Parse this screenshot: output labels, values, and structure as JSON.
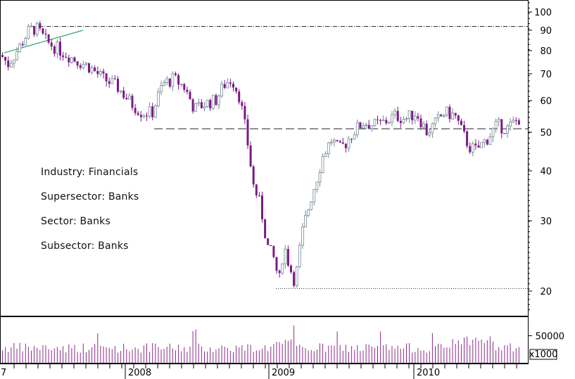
{
  "info": {
    "industry": "Industry: Financials",
    "supersector": "Supersector: Banks",
    "sector": "Sector: Banks",
    "subsector": "Subsector: Banks"
  },
  "colors": {
    "up": "#778a96",
    "down": "#7a1a86",
    "trend": "#2fa86a",
    "volume": "#8a2a8a",
    "grid": "#000000"
  },
  "chart_data": {
    "type": "candlestick",
    "price_axis": {
      "scale": "log",
      "ticks": [
        100,
        90,
        80,
        70,
        60,
        50,
        40,
        30,
        20
      ],
      "range": [
        18.5,
        108
      ]
    },
    "volume_axis": {
      "ticks": [
        50000
      ],
      "unit_label": "x1000",
      "range": [
        0,
        90000
      ]
    },
    "x_ticks": [
      "7",
      "2008",
      "2009",
      "2010"
    ],
    "reference_lines": [
      {
        "style": "dash-dot",
        "value": 92,
        "from": "2007-07",
        "to": "end"
      },
      {
        "style": "dashed",
        "value": 51,
        "from": "2008-02",
        "to": "end"
      },
      {
        "style": "dotted",
        "value": 20.3,
        "from": "2008-12",
        "to": "end"
      }
    ],
    "trend_line": {
      "from": [
        "2007-01",
        79
      ],
      "to": [
        "2007-09",
        90
      ]
    },
    "anchors": [
      [
        0,
        78
      ],
      [
        10,
        74
      ],
      [
        25,
        81
      ],
      [
        40,
        90
      ],
      [
        50,
        91
      ],
      [
        65,
        84
      ],
      [
        85,
        80
      ],
      [
        105,
        76
      ],
      [
        125,
        73
      ],
      [
        145,
        68
      ],
      [
        165,
        65
      ],
      [
        185,
        59
      ],
      [
        200,
        56
      ],
      [
        215,
        56
      ],
      [
        230,
        66
      ],
      [
        245,
        68
      ],
      [
        260,
        65
      ],
      [
        275,
        57
      ],
      [
        290,
        59
      ],
      [
        305,
        60
      ],
      [
        318,
        66
      ],
      [
        328,
        68
      ],
      [
        338,
        62
      ],
      [
        348,
        50
      ],
      [
        358,
        37
      ],
      [
        368,
        33
      ],
      [
        378,
        26
      ],
      [
        388,
        24
      ],
      [
        395,
        21
      ],
      [
        402,
        26
      ],
      [
        410,
        23
      ],
      [
        418,
        21
      ],
      [
        428,
        28
      ],
      [
        438,
        33
      ],
      [
        448,
        38
      ],
      [
        458,
        44
      ],
      [
        470,
        48
      ],
      [
        480,
        45
      ],
      [
        490,
        47
      ],
      [
        500,
        50
      ],
      [
        515,
        53
      ],
      [
        530,
        52
      ],
      [
        545,
        53
      ],
      [
        560,
        55
      ],
      [
        575,
        54
      ],
      [
        590,
        56
      ],
      [
        605,
        50
      ],
      [
        615,
        52
      ],
      [
        630,
        56
      ],
      [
        645,
        55
      ],
      [
        655,
        50
      ],
      [
        665,
        46
      ],
      [
        675,
        45
      ],
      [
        690,
        48
      ],
      [
        705,
        52
      ],
      [
        720,
        51
      ],
      [
        735,
        54
      ],
      [
        740,
        54
      ]
    ]
  }
}
